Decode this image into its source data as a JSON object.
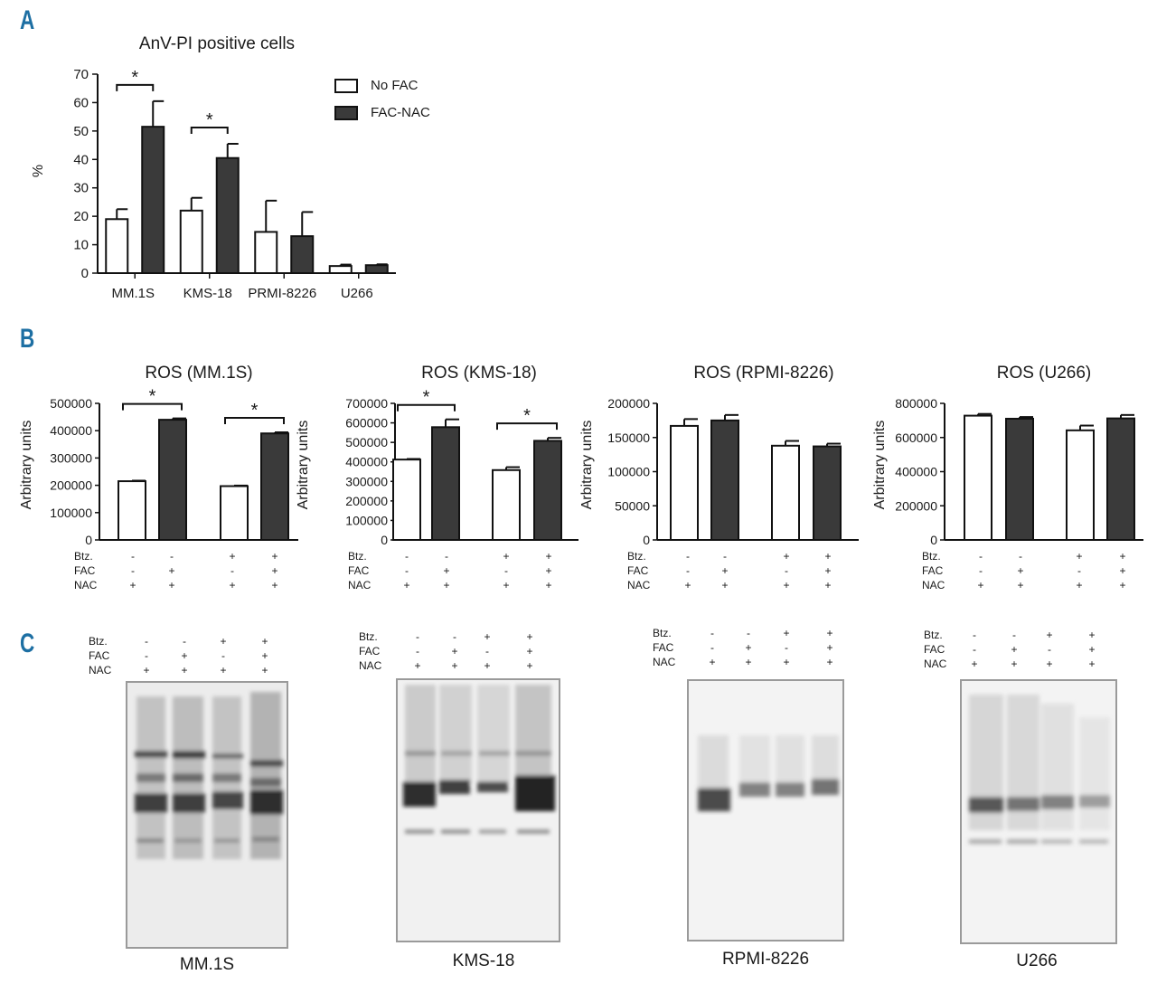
{
  "panels": {
    "a": "A",
    "b": "B",
    "c": "C"
  },
  "colors": {
    "no_fac": "#ffffff",
    "fac_nac": "#3a3a3a",
    "outline": "#111111"
  },
  "legend": {
    "no_fac": "No FAC",
    "fac_nac": "FAC-NAC"
  },
  "condition_labels": {
    "btz": "Btz.",
    "fac": "FAC",
    "nac": "NAC"
  },
  "conditions": {
    "btz": [
      "-",
      "-",
      "+",
      "+"
    ],
    "fac": [
      "-",
      "+",
      "-",
      "+"
    ],
    "nac": [
      "+",
      "+",
      "+",
      "+"
    ]
  },
  "chart_data": [
    {
      "id": "anv",
      "type": "bar",
      "title": "AnV-PI positive cells",
      "ylabel": "%",
      "ylim": [
        0,
        70
      ],
      "yticks": [
        "0",
        "10",
        "20",
        "30",
        "40",
        "50",
        "60",
        "70"
      ],
      "categories": [
        "MM.1S",
        "KMS-18",
        "PRMI-8226",
        "U266"
      ],
      "series": [
        {
          "name": "No FAC",
          "values": [
            19,
            22,
            14.5,
            2.5
          ],
          "errors": [
            3.5,
            4.5,
            11,
            0.5
          ]
        },
        {
          "name": "FAC-NAC",
          "values": [
            51.5,
            40.5,
            13,
            2.8
          ],
          "errors": [
            9,
            5,
            8.5,
            0.3
          ]
        }
      ],
      "significance": [
        {
          "category": 0,
          "label": "*"
        },
        {
          "category": 1,
          "label": "*"
        }
      ]
    },
    {
      "id": "ros_mm1s",
      "type": "bar",
      "title": "ROS (MM.1S)",
      "ylabel": "Arbitrary units",
      "ylim": [
        0,
        500000
      ],
      "yticks": [
        "0",
        "100000",
        "200000",
        "300000",
        "400000",
        "500000"
      ],
      "values": [
        215000,
        440000,
        197000,
        390000
      ],
      "errors": [
        2000,
        5000,
        2000,
        4000
      ],
      "significance": [
        {
          "pair": [
            0,
            1
          ],
          "label": "*"
        },
        {
          "pair": [
            2,
            3
          ],
          "label": "*"
        }
      ]
    },
    {
      "id": "ros_kms18",
      "type": "bar",
      "title": "ROS (KMS-18)",
      "ylabel": "Arbitrary units",
      "ylim": [
        0,
        700000
      ],
      "yticks": [
        "0",
        "100000",
        "200000",
        "300000",
        "400000",
        "500000",
        "600000",
        "700000"
      ],
      "values": [
        412000,
        578000,
        358000,
        508000
      ],
      "errors": [
        3000,
        40000,
        15000,
        15000
      ],
      "significance": [
        {
          "pair": [
            0,
            1
          ],
          "label": "*"
        },
        {
          "pair": [
            2,
            3
          ],
          "label": "*"
        }
      ]
    },
    {
      "id": "ros_rpmi8226",
      "type": "bar",
      "title": "ROS (RPMI-8226)",
      "ylabel": "Arbitrary units",
      "ylim": [
        0,
        200000
      ],
      "yticks": [
        "0",
        "50000",
        "100000",
        "150000",
        "200000"
      ],
      "values": [
        167000,
        175000,
        138000,
        137000
      ],
      "errors": [
        10000,
        8000,
        7000,
        4000
      ],
      "significance": []
    },
    {
      "id": "ros_u266",
      "type": "bar",
      "title": "ROS (U266)",
      "ylabel": "Arbitrary units",
      "ylim": [
        0,
        800000
      ],
      "yticks": [
        "0",
        "200000",
        "400000",
        "600000",
        "800000"
      ],
      "values": [
        728000,
        710000,
        642000,
        712000
      ],
      "errors": [
        10000,
        10000,
        28000,
        20000
      ],
      "significance": []
    }
  ],
  "blots": [
    "MM.1S",
    "KMS-18",
    "RPMI-8226",
    "U266"
  ]
}
